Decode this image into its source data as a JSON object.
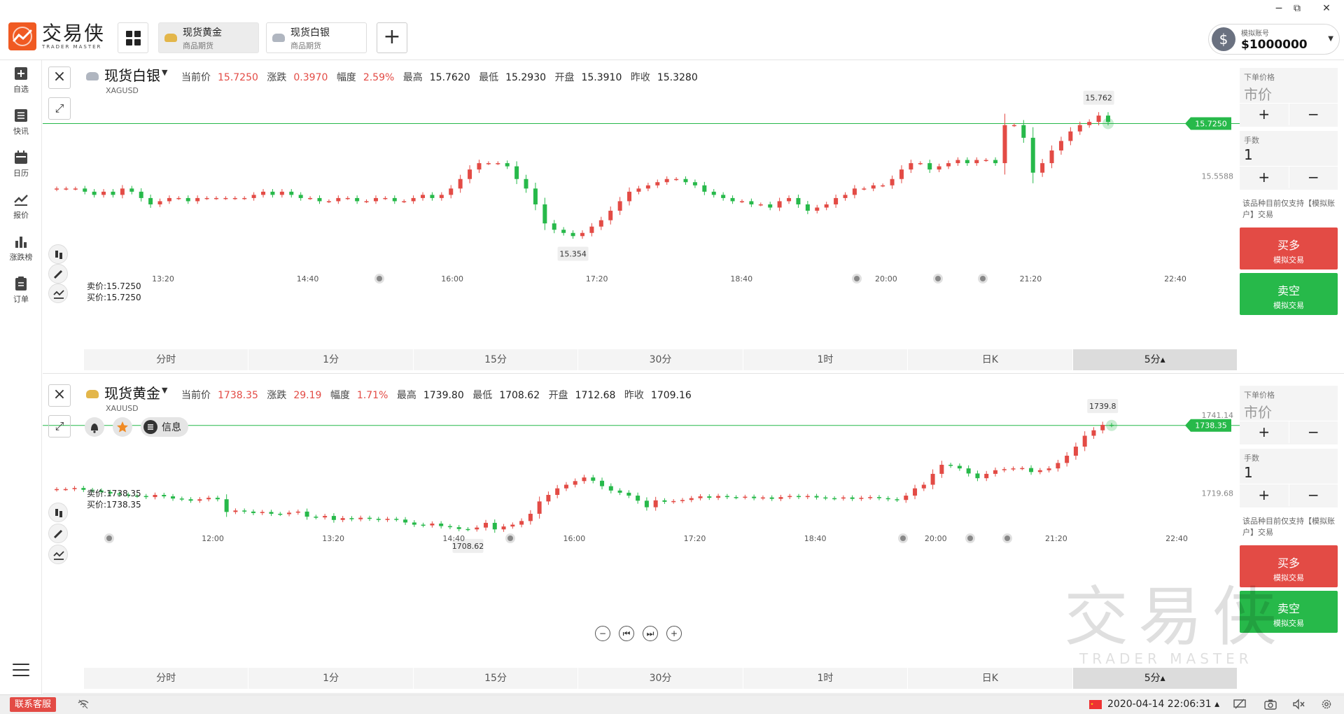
{
  "app": {
    "logo_cn": "交易侠",
    "logo_en": "TRADER MASTER"
  },
  "tabs": [
    {
      "title": "现货黄金",
      "subtitle": "商品期货",
      "active": true,
      "icon": "gold-bar-icon"
    },
    {
      "title": "现货白银",
      "subtitle": "商品期货",
      "active": false,
      "icon": "silver-bar-icon"
    }
  ],
  "window": {
    "minimize": "−",
    "restore": "⧉",
    "close": "✕"
  },
  "account": {
    "label": "模拟账号",
    "value": "$1000000",
    "icon": "$"
  },
  "sidebar": [
    {
      "label": "自选",
      "icon": "favorite-add-icon"
    },
    {
      "label": "快讯",
      "icon": "news-icon"
    },
    {
      "label": "日历",
      "icon": "calendar-icon"
    },
    {
      "label": "报价",
      "icon": "quote-line-icon"
    },
    {
      "label": "涨跌榜",
      "icon": "ranking-bar-icon"
    },
    {
      "label": "订单",
      "icon": "order-clipboard-icon"
    }
  ],
  "panels": [
    {
      "name": "现货白银",
      "code": "XAGUSD",
      "icon_color": "#b0b6c0",
      "quote": {
        "current_label": "当前价",
        "current": "15.7250",
        "change_label": "涨跌",
        "change": "0.3970",
        "pct_label": "幅度",
        "pct": "2.59%",
        "high_label": "最高",
        "high": "15.7620",
        "low_label": "最低",
        "low": "15.2930",
        "open_label": "开盘",
        "open": "15.3910",
        "prev_label": "昨收",
        "prev": "15.3280"
      },
      "bid": "卖价:15.7250",
      "ask": "买价:15.7250",
      "show_alerts": false,
      "order": {
        "price_label": "下单价格",
        "price": "市价",
        "lots_label": "手数",
        "lots": "1",
        "note": "该品种目前仅支持【模拟账户】交易",
        "buy": "买多",
        "sell": "卖空",
        "sub": "模拟交易",
        "plus": "+",
        "minus": "−"
      }
    },
    {
      "name": "现货黄金",
      "code": "XAUUSD",
      "icon_color": "#e3b64a",
      "quote": {
        "current_label": "当前价",
        "current": "1738.35",
        "change_label": "涨跌",
        "change": "29.19",
        "pct_label": "幅度",
        "pct": "1.71%",
        "high_label": "最高",
        "high": "1739.80",
        "low_label": "最低",
        "low": "1708.62",
        "open_label": "开盘",
        "open": "1712.68",
        "prev_label": "昨收",
        "prev": "1709.16"
      },
      "bid": "卖价:1738.35",
      "ask": "买价:1738.35",
      "show_alerts": true,
      "alerts": {
        "info": "信息"
      },
      "order": {
        "price_label": "下单价格",
        "price": "市价",
        "lots_label": "手数",
        "lots": "1",
        "note": "该品种目前仅支持【模拟账户】交易",
        "buy": "买多",
        "sell": "卖空",
        "sub": "模拟交易",
        "plus": "+",
        "minus": "−"
      }
    }
  ],
  "periods": [
    "分时",
    "1分",
    "15分",
    "30分",
    "1时",
    "日K",
    "5分▴"
  ],
  "active_period": 6,
  "nav_controls": [
    "−",
    "⏮",
    "⏭",
    "+"
  ],
  "status": {
    "support": "联系客服",
    "datetime": "2020-04-14 22:06:31 ▴"
  },
  "watermark": {
    "cn": "交易侠",
    "en": "TRADER MASTER"
  },
  "colors": {
    "up": "#e34b45",
    "down": "#27b94a",
    "price_line": "#27b94a"
  },
  "chart_data": [
    {
      "type": "candlestick",
      "symbol": "XAGUSD",
      "interval": "5分",
      "x_ticks": [
        "13:20",
        "14:40",
        "16:00",
        "17:20",
        "18:40",
        "20:00",
        "21:20",
        "22:40"
      ],
      "y_ticks": [
        "15.5588"
      ],
      "ylim": [
        15.3,
        15.79
      ],
      "current_price": 15.725,
      "current_price_label": "15.7250",
      "max_label": "15.762",
      "max_label_value": 15.762,
      "min_label": "15.354",
      "min_label_value": 15.354,
      "closes": [
        15.52,
        15.52,
        15.52,
        15.51,
        15.5,
        15.51,
        15.5,
        15.52,
        15.51,
        15.49,
        15.47,
        15.48,
        15.49,
        15.49,
        15.48,
        15.49,
        15.49,
        15.49,
        15.49,
        15.49,
        15.49,
        15.5,
        15.51,
        15.5,
        15.51,
        15.5,
        15.49,
        15.49,
        15.48,
        15.48,
        15.49,
        15.49,
        15.48,
        15.48,
        15.49,
        15.49,
        15.48,
        15.48,
        15.49,
        15.5,
        15.49,
        15.5,
        15.52,
        15.55,
        15.58,
        15.6,
        15.6,
        15.6,
        15.59,
        15.55,
        15.52,
        15.47,
        15.41,
        15.39,
        15.38,
        15.37,
        15.38,
        15.4,
        15.42,
        15.45,
        15.48,
        15.51,
        15.52,
        15.53,
        15.54,
        15.55,
        15.55,
        15.54,
        15.53,
        15.51,
        15.5,
        15.49,
        15.48,
        15.48,
        15.47,
        15.47,
        15.46,
        15.48,
        15.49,
        15.47,
        15.45,
        15.46,
        15.47,
        15.49,
        15.5,
        15.52,
        15.52,
        15.53,
        15.53,
        15.55,
        15.58,
        15.6,
        15.6,
        15.58,
        15.59,
        15.6,
        15.61,
        15.6,
        15.61,
        15.61,
        15.6,
        15.72,
        15.72,
        15.68,
        15.57,
        15.6,
        15.64,
        15.67,
        15.7,
        15.72,
        15.73,
        15.75,
        15.73
      ],
      "grid": false,
      "legend": null
    },
    {
      "type": "candlestick",
      "symbol": "XAUUSD",
      "interval": "5分",
      "x_ticks": [
        "12:00",
        "13:20",
        "14:40",
        "16:00",
        "17:20",
        "18:40",
        "20:00",
        "21:20",
        "22:40"
      ],
      "y_ticks": [
        "1741.14",
        "1719.68"
      ],
      "ylim": [
        1703.0,
        1743.5
      ],
      "current_price": 1738.35,
      "current_price_label": "1738.35",
      "max_label": "1739.8",
      "max_label_value": 1739.8,
      "min_label": "1708.62",
      "min_label_value": 1708.62,
      "closes": [
        1720.8,
        1720.8,
        1721.1,
        1720.6,
        1720.4,
        1720.0,
        1719.6,
        1719.3,
        1719.0,
        1718.9,
        1718.6,
        1719.2,
        1718.8,
        1718.2,
        1718.0,
        1717.6,
        1718.0,
        1718.4,
        1718.0,
        1714.5,
        1714.9,
        1714.6,
        1714.2,
        1714.5,
        1714.0,
        1713.9,
        1714.3,
        1714.6,
        1713.2,
        1713.0,
        1713.4,
        1712.3,
        1712.8,
        1712.5,
        1712.9,
        1712.6,
        1712.3,
        1712.6,
        1712.4,
        1711.6,
        1711.0,
        1710.8,
        1711.3,
        1710.6,
        1710.3,
        1709.8,
        1709.7,
        1710.2,
        1711.5,
        1709.7,
        1710.5,
        1711.0,
        1712.0,
        1714.0,
        1717.4,
        1719.2,
        1721.0,
        1722.0,
        1723.0,
        1724.0,
        1723.1,
        1721.6,
        1720.4,
        1719.8,
        1719.0,
        1717.6,
        1715.8,
        1717.7,
        1717.3,
        1717.5,
        1717.8,
        1718.3,
        1718.8,
        1718.4,
        1718.9,
        1718.6,
        1718.5,
        1718.7,
        1718.3,
        1718.5,
        1718.1,
        1718.6,
        1718.9,
        1718.6,
        1718.9,
        1718.5,
        1718.3,
        1718.2,
        1718.5,
        1718.1,
        1718.4,
        1718.6,
        1718.3,
        1718.0,
        1717.8,
        1719.0,
        1721.0,
        1722.0,
        1725.0,
        1727.5,
        1727.2,
        1726.5,
        1725.1,
        1723.8,
        1725.0,
        1726.0,
        1726.3,
        1726.5,
        1726.6,
        1725.5,
        1726.0,
        1726.5,
        1728.0,
        1730.0,
        1732.5,
        1735.5,
        1737.0,
        1738.5,
        1738.35
      ],
      "grid": false,
      "legend": null
    }
  ]
}
